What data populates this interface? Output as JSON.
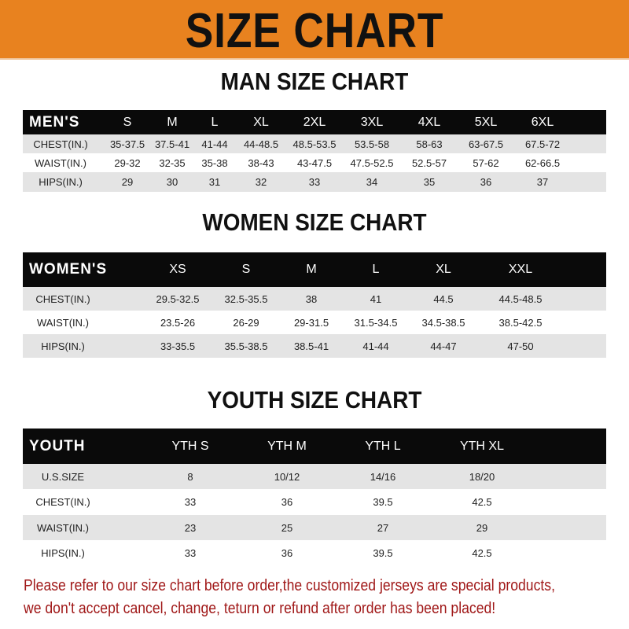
{
  "banner": {
    "title": "SIZE CHART",
    "color": "#e8821f"
  },
  "men": {
    "title": "MAN SIZE CHART",
    "header": [
      "MEN'S",
      "S",
      "M",
      "L",
      "XL",
      "2XL",
      "3XL",
      "4XL",
      "5XL",
      "6XL"
    ],
    "rows": [
      [
        "CHEST(IN.)",
        "35-37.5",
        "37.5-41",
        "41-44",
        "44-48.5",
        "48.5-53.5",
        "53.5-58",
        "58-63",
        "63-67.5",
        "67.5-72"
      ],
      [
        "WAIST(IN.)",
        "29-32",
        "32-35",
        "35-38",
        "38-43",
        "43-47.5",
        "47.5-52.5",
        "52.5-57",
        "57-62",
        "62-66.5"
      ],
      [
        "HIPS(IN.)",
        "29",
        "30",
        "31",
        "32",
        "33",
        "34",
        "35",
        "36",
        "37"
      ]
    ]
  },
  "women": {
    "title": "WOMEN SIZE CHART",
    "header": [
      "WOMEN'S",
      "XS",
      "S",
      "M",
      "L",
      "XL",
      "XXL"
    ],
    "rows": [
      [
        "CHEST(IN.)",
        "29.5-32.5",
        "32.5-35.5",
        "38",
        "41",
        "44.5",
        "44.5-48.5"
      ],
      [
        "WAIST(IN.)",
        "23.5-26",
        "26-29",
        "29-31.5",
        "31.5-34.5",
        "34.5-38.5",
        "38.5-42.5"
      ],
      [
        "HIPS(IN.)",
        "33-35.5",
        "35.5-38.5",
        "38.5-41",
        "41-44",
        "44-47",
        "47-50"
      ]
    ]
  },
  "youth": {
    "title": "YOUTH SIZE CHART",
    "header": [
      "YOUTH",
      "YTH S",
      "YTH M",
      "YTH L",
      "YTH XL"
    ],
    "rows": [
      [
        "U.S.SIZE",
        "8",
        "10/12",
        "14/16",
        "18/20"
      ],
      [
        "CHEST(IN.)",
        "33",
        "36",
        "39.5",
        "42.5"
      ],
      [
        "WAIST(IN.)",
        "23",
        "25",
        "27",
        "29"
      ],
      [
        "HIPS(IN.)",
        "33",
        "36",
        "39.5",
        "42.5"
      ]
    ]
  },
  "footer": {
    "line1": "Please refer to our size chart before order,the customized jerseys are special products,",
    "line2": "we don't accept cancel, change, teturn or refund after order has been placed!",
    "color": "#a01818"
  }
}
